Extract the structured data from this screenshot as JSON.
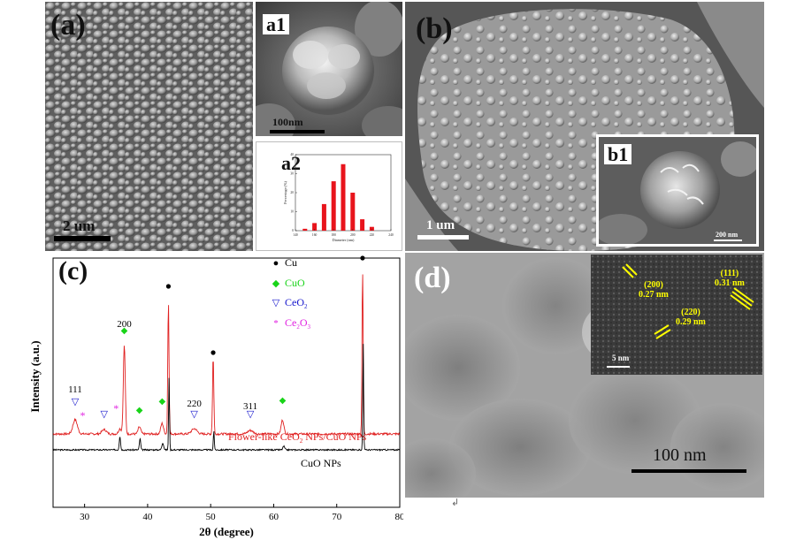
{
  "figure": {
    "panel_a": {
      "label": "(a)",
      "scale_bar": "2 um"
    },
    "panel_a1": {
      "label": "a1",
      "scale_bar": "100nm"
    },
    "panel_a2": {
      "label": "a2",
      "chart_data": {
        "type": "bar",
        "title": "",
        "xlabel": "Diameter (nm)",
        "ylabel": "Percentage (%)",
        "x": [
          150,
          160,
          170,
          180,
          190,
          200,
          210,
          220
        ],
        "values": [
          1,
          4,
          14,
          26,
          35,
          20,
          6,
          2
        ],
        "xlim": [
          140,
          240
        ],
        "ylim": [
          0,
          40
        ],
        "xticks": [
          "140",
          "160",
          "180",
          "200",
          "220",
          "240"
        ],
        "yticks": [
          "0",
          "10",
          "20",
          "30",
          "40"
        ],
        "bar_color": "#e8141c"
      }
    },
    "panel_b": {
      "label": "(b)",
      "scale_bar": "1 um"
    },
    "panel_b1": {
      "label": "b1",
      "scale_bar": "200 nm"
    },
    "panel_c": {
      "label": "(c)",
      "chart_data": {
        "type": "line",
        "xlabel": "2θ (degree)",
        "ylabel": "Intensity (a.u.)",
        "xlim": [
          25,
          80
        ],
        "xticks": [
          "30",
          "40",
          "50",
          "60",
          "70",
          "80"
        ],
        "legend": [
          {
            "symbol": "●",
            "name": "Cu",
            "color": "#000000"
          },
          {
            "symbol": "◆",
            "name": "CuO",
            "color": "#19d419"
          },
          {
            "symbol": "▽",
            "name": "CeO",
            "sub": "2",
            "color": "#1414cc"
          },
          {
            "symbol": "*",
            "name": "Ce",
            "sub": "2",
            "mid": "O",
            "sub2": "3",
            "color": "#e020e0"
          }
        ],
        "series": [
          {
            "name": "Flower-like CeO2 NPs/CuO NPs",
            "label_main": "Flower-like CeO",
            "label_sub": "2",
            "label_tail": " NPs/CuO NPs",
            "color": "#e02020"
          },
          {
            "name": "CuO NPs",
            "color": "#000000"
          }
        ],
        "peak_labels": [
          {
            "text": "111",
            "x": 28.5
          },
          {
            "text": "200",
            "x": 36.3
          },
          {
            "text": "220",
            "x": 47.4
          },
          {
            "text": "311",
            "x": 56.3
          }
        ]
      }
    },
    "panel_d": {
      "label": "(d)",
      "scale_bar": "100 nm",
      "inset_scale_bar": "5 nm",
      "fringes": [
        {
          "plane": "(200)",
          "spacing": "0.27 nm"
        },
        {
          "plane": "(111)",
          "spacing": "0.31 nm"
        },
        {
          "plane": "(220)",
          "spacing": "0.29 nm"
        }
      ]
    },
    "corner_mark": "↲"
  }
}
